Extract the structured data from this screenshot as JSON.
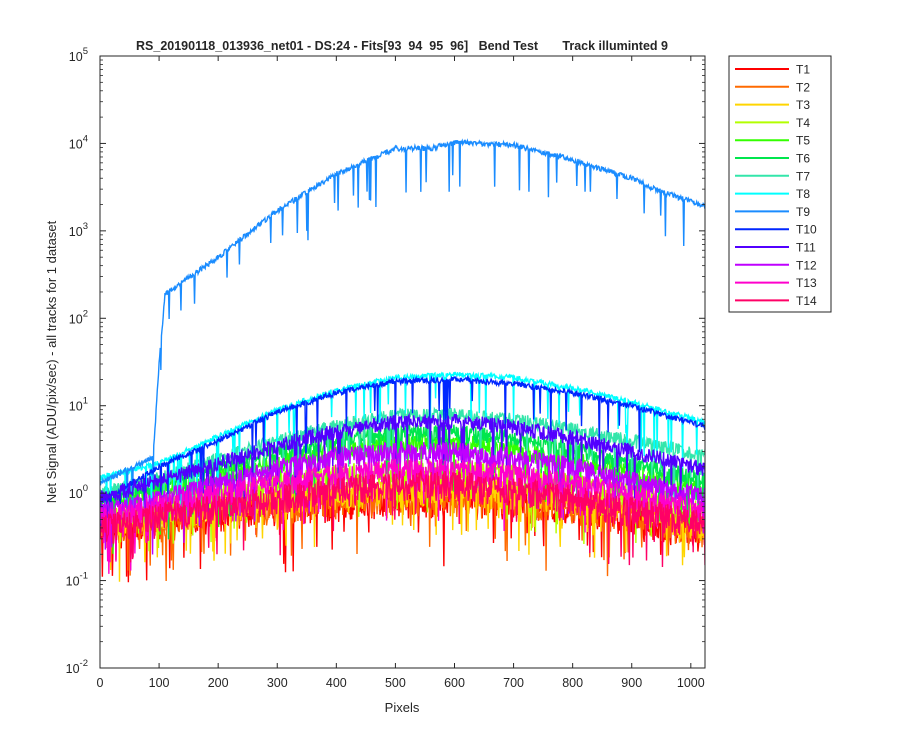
{
  "chart_data": {
    "type": "line",
    "title": "RS_20190118_013936_net01 - DS:24 - Fits[93  94  95  96]   Bend Test       Track illuminted 9",
    "xlabel": "Pixels",
    "ylabel": "Net Signal (ADU/pix/sec) - all tracks for 1 dataset",
    "xlim": [
      0,
      1024
    ],
    "ylim": [
      0.01,
      100000
    ],
    "yscale": "log",
    "x_ticks": [
      0,
      100,
      200,
      300,
      400,
      500,
      600,
      700,
      800,
      900,
      1000
    ],
    "y_ticks": [
      {
        "value": 0.01,
        "base": "10",
        "exp": "-2"
      },
      {
        "value": 0.1,
        "base": "10",
        "exp": "-1"
      },
      {
        "value": 1,
        "base": "10",
        "exp": "0"
      },
      {
        "value": 10,
        "base": "10",
        "exp": "1"
      },
      {
        "value": 100,
        "base": "10",
        "exp": "2"
      },
      {
        "value": 1000,
        "base": "10",
        "exp": "3"
      },
      {
        "value": 10000,
        "base": "10",
        "exp": "4"
      },
      {
        "value": 100000,
        "base": "10",
        "exp": "5"
      }
    ],
    "grid": false,
    "legend_position": "outside-right",
    "series": [
      {
        "name": "T1",
        "color": "#ff0000",
        "x": [
          0,
          100,
          200,
          300,
          400,
          500,
          600,
          700,
          800,
          900,
          1024
        ],
        "y": [
          0.35,
          0.5,
          0.6,
          0.7,
          0.8,
          0.85,
          0.85,
          0.8,
          0.7,
          0.55,
          0.35
        ]
      },
      {
        "name": "T2",
        "color": "#ff6a00",
        "x": [
          0,
          100,
          200,
          300,
          400,
          500,
          600,
          700,
          800,
          900,
          1024
        ],
        "y": [
          0.4,
          0.55,
          0.65,
          0.75,
          0.85,
          0.9,
          0.9,
          0.85,
          0.75,
          0.6,
          0.4
        ]
      },
      {
        "name": "T3",
        "color": "#ffd500",
        "x": [
          0,
          100,
          200,
          300,
          400,
          500,
          600,
          700,
          800,
          900,
          1024
        ],
        "y": [
          0.45,
          0.6,
          0.75,
          0.9,
          1.05,
          1.15,
          1.15,
          1.05,
          0.9,
          0.7,
          0.45
        ]
      },
      {
        "name": "T4",
        "color": "#b3ff00",
        "x": [
          0,
          100,
          200,
          300,
          400,
          500,
          600,
          700,
          800,
          900,
          1024
        ],
        "y": [
          0.55,
          0.75,
          1.0,
          1.3,
          1.6,
          1.8,
          1.8,
          1.6,
          1.3,
          1.0,
          0.6
        ]
      },
      {
        "name": "T5",
        "color": "#33ff00",
        "x": [
          0,
          100,
          200,
          300,
          400,
          500,
          600,
          700,
          800,
          900,
          1024
        ],
        "y": [
          0.8,
          1.1,
          1.6,
          2.3,
          3.2,
          3.8,
          3.8,
          3.2,
          2.4,
          1.7,
          1.1
        ]
      },
      {
        "name": "T6",
        "color": "#00e64d",
        "x": [
          0,
          100,
          200,
          300,
          400,
          500,
          600,
          700,
          800,
          900,
          1024
        ],
        "y": [
          0.9,
          1.3,
          2.0,
          3.0,
          4.2,
          5.0,
          5.0,
          4.2,
          3.2,
          2.2,
          1.4
        ]
      },
      {
        "name": "T7",
        "color": "#33e6aa",
        "x": [
          0,
          100,
          200,
          300,
          400,
          500,
          600,
          700,
          800,
          900,
          1024
        ],
        "y": [
          1.0,
          1.5,
          2.5,
          4.0,
          6.0,
          7.8,
          8.0,
          7.0,
          5.5,
          4.0,
          2.8
        ]
      },
      {
        "name": "T8",
        "color": "#00ffff",
        "x": [
          0,
          100,
          200,
          300,
          400,
          500,
          600,
          700,
          800,
          900,
          1024
        ],
        "y": [
          1.5,
          2.2,
          4.5,
          9.0,
          15,
          21,
          23,
          21,
          16,
          11,
          6.5
        ]
      },
      {
        "name": "T9",
        "color": "#1a8cff",
        "x": [
          0,
          90,
          100,
          110,
          200,
          300,
          400,
          500,
          560,
          600,
          700,
          800,
          900,
          940,
          1024
        ],
        "y": [
          1.3,
          2.6,
          30,
          190,
          500,
          1700,
          4500,
          8800,
          8800,
          10200,
          9600,
          6500,
          4000,
          3000,
          1900
        ]
      },
      {
        "name": "T10",
        "color": "#0026ff",
        "x": [
          0,
          100,
          200,
          300,
          400,
          500,
          600,
          700,
          800,
          900,
          1024
        ],
        "y": [
          0.8,
          2.0,
          4.0,
          8.5,
          14,
          19,
          20,
          18,
          14,
          10,
          5.8
        ]
      },
      {
        "name": "T11",
        "color": "#5200ff",
        "x": [
          0,
          100,
          200,
          300,
          400,
          500,
          600,
          700,
          800,
          900,
          1024
        ],
        "y": [
          0.9,
          1.4,
          2.2,
          3.6,
          5.2,
          6.5,
          6.7,
          5.8,
          4.4,
          3.0,
          1.9
        ]
      },
      {
        "name": "T12",
        "color": "#bf00ff",
        "x": [
          0,
          100,
          200,
          300,
          400,
          500,
          600,
          700,
          800,
          900,
          1024
        ],
        "y": [
          0.6,
          0.85,
          1.3,
          1.9,
          2.6,
          3.0,
          3.0,
          2.6,
          2.0,
          1.4,
          0.9
        ]
      },
      {
        "name": "T13",
        "color": "#ff00cc",
        "x": [
          0,
          100,
          200,
          300,
          400,
          500,
          600,
          700,
          800,
          900,
          1024
        ],
        "y": [
          0.5,
          0.7,
          0.95,
          1.3,
          1.6,
          1.85,
          1.85,
          1.6,
          1.3,
          0.95,
          0.6
        ]
      },
      {
        "name": "T14",
        "color": "#ff0066",
        "x": [
          0,
          100,
          200,
          300,
          400,
          500,
          600,
          700,
          800,
          900,
          1024
        ],
        "y": [
          0.4,
          0.55,
          0.7,
          0.9,
          1.1,
          1.3,
          1.3,
          1.1,
          0.9,
          0.65,
          0.45
        ]
      }
    ]
  }
}
